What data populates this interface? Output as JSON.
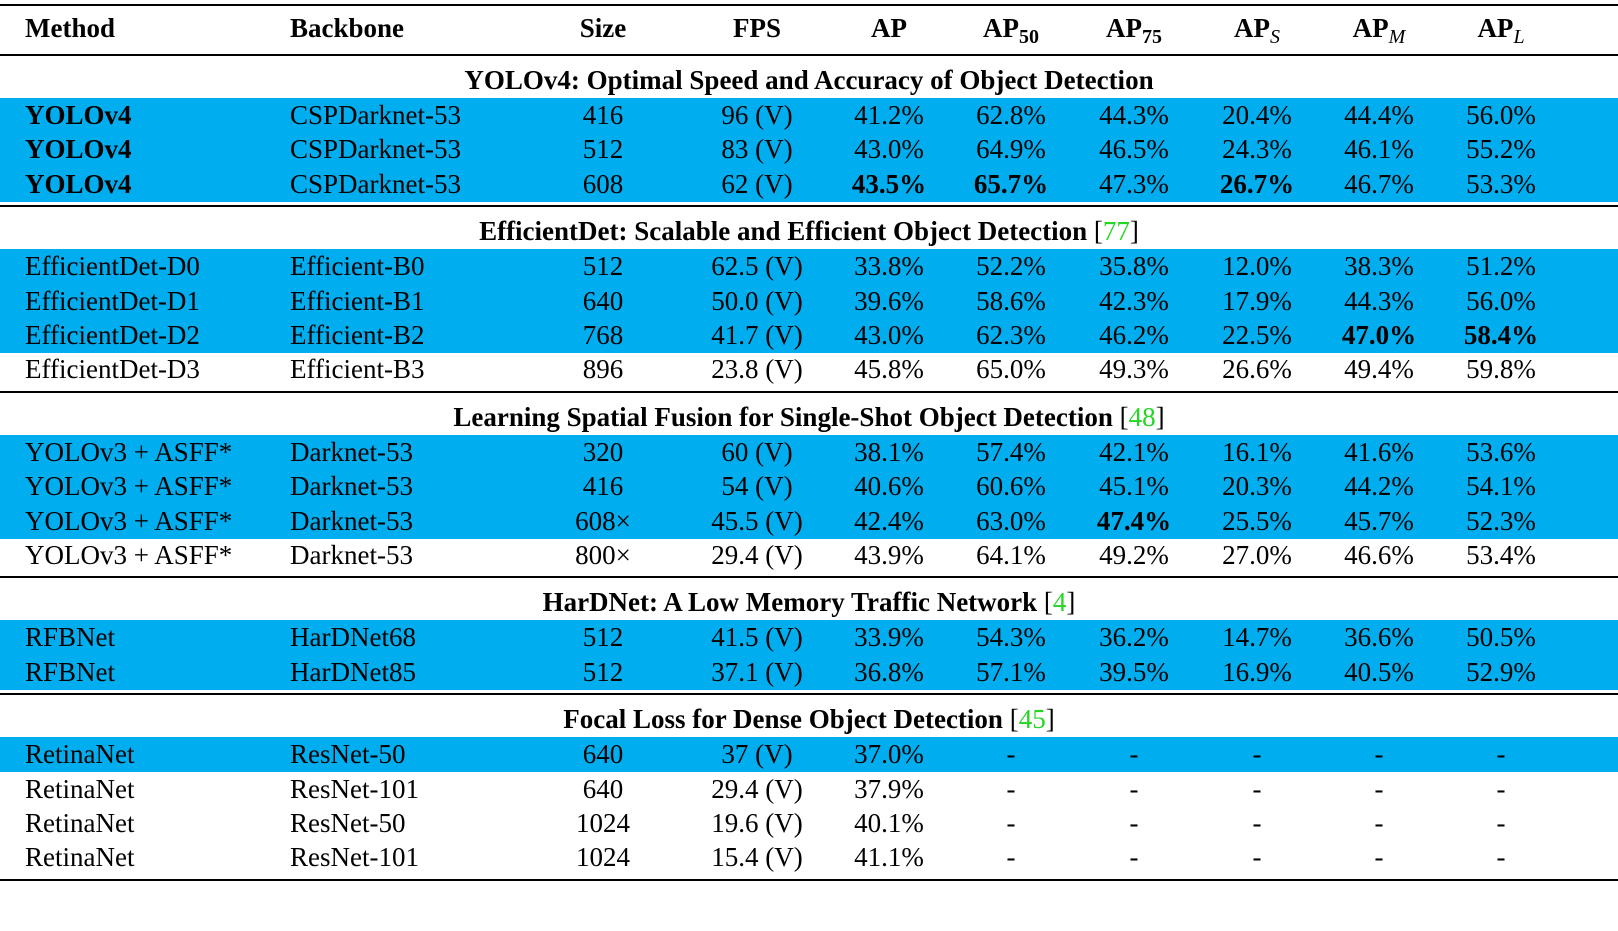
{
  "columns": [
    {
      "label": "Method",
      "sub": ""
    },
    {
      "label": "Backbone",
      "sub": ""
    },
    {
      "label": "Size",
      "sub": ""
    },
    {
      "label": "FPS",
      "sub": ""
    },
    {
      "label": "AP",
      "sub": ""
    },
    {
      "label": "AP",
      "sub": "50"
    },
    {
      "label": "AP",
      "sub": "75"
    },
    {
      "label": "AP",
      "sub": "S"
    },
    {
      "label": "AP",
      "sub": "M"
    },
    {
      "label": "AP",
      "sub": "L"
    }
  ],
  "colors": {
    "highlight": "#00aeef",
    "reference": "#22d622"
  },
  "sections": [
    {
      "title": "YOLOv4: Optimal Speed and Accuracy of Object Detection",
      "ref_open": "",
      "ref": "",
      "ref_close": "",
      "rows": [
        {
          "hl": true,
          "cells": [
            "YOLOv4",
            "CSPDarknet-53",
            "416",
            "96 (V)",
            "41.2%",
            "62.8%",
            "44.3%",
            "20.4%",
            "44.4%",
            "56.0%"
          ],
          "bold": [
            0
          ]
        },
        {
          "hl": true,
          "cells": [
            "YOLOv4",
            "CSPDarknet-53",
            "512",
            "83 (V)",
            "43.0%",
            "64.9%",
            "46.5%",
            "24.3%",
            "46.1%",
            "55.2%"
          ],
          "bold": [
            0
          ]
        },
        {
          "hl": true,
          "cells": [
            "YOLOv4",
            "CSPDarknet-53",
            "608",
            "62 (V)",
            "43.5%",
            "65.7%",
            "47.3%",
            "26.7%",
            "46.7%",
            "53.3%"
          ],
          "bold": [
            0,
            4,
            5,
            7
          ]
        }
      ]
    },
    {
      "title": "EfficientDet: Scalable and Efficient Object Detection",
      "ref_open": "[",
      "ref": "77",
      "ref_close": "]",
      "rows": [
        {
          "hl": true,
          "cells": [
            "EfficientDet-D0",
            "Efficient-B0",
            "512",
            "62.5 (V)",
            "33.8%",
            "52.2%",
            "35.8%",
            "12.0%",
            "38.3%",
            "51.2%"
          ],
          "bold": []
        },
        {
          "hl": true,
          "cells": [
            "EfficientDet-D1",
            "Efficient-B1",
            "640",
            "50.0 (V)",
            "39.6%",
            "58.6%",
            "42.3%",
            "17.9%",
            "44.3%",
            "56.0%"
          ],
          "bold": []
        },
        {
          "hl": true,
          "cells": [
            "EfficientDet-D2",
            "Efficient-B2",
            "768",
            "41.7 (V)",
            "43.0%",
            "62.3%",
            "46.2%",
            "22.5%",
            "47.0%",
            "58.4%"
          ],
          "bold": [
            8,
            9
          ]
        },
        {
          "hl": false,
          "cells": [
            "EfficientDet-D3",
            "Efficient-B3",
            "896",
            "23.8 (V)",
            "45.8%",
            "65.0%",
            "49.3%",
            "26.6%",
            "49.4%",
            "59.8%"
          ],
          "bold": []
        }
      ]
    },
    {
      "title": "Learning Spatial Fusion for Single-Shot Object Detection",
      "ref_open": "[",
      "ref": "48",
      "ref_close": "]",
      "rows": [
        {
          "hl": true,
          "cells": [
            "YOLOv3 + ASFF*",
            "Darknet-53",
            "320",
            "60 (V)",
            "38.1%",
            "57.4%",
            "42.1%",
            "16.1%",
            "41.6%",
            "53.6%"
          ],
          "bold": []
        },
        {
          "hl": true,
          "cells": [
            "YOLOv3 + ASFF*",
            "Darknet-53",
            "416",
            "54 (V)",
            "40.6%",
            "60.6%",
            "45.1%",
            "20.3%",
            "44.2%",
            "54.1%"
          ],
          "bold": []
        },
        {
          "hl": true,
          "cells": [
            "YOLOv3 + ASFF*",
            "Darknet-53",
            "608×",
            "45.5 (V)",
            "42.4%",
            "63.0%",
            "47.4%",
            "25.5%",
            "45.7%",
            "52.3%"
          ],
          "bold": [
            6
          ]
        },
        {
          "hl": false,
          "cells": [
            "YOLOv3 + ASFF*",
            "Darknet-53",
            "800×",
            "29.4 (V)",
            "43.9%",
            "64.1%",
            "49.2%",
            "27.0%",
            "46.6%",
            "53.4%"
          ],
          "bold": []
        }
      ]
    },
    {
      "title": "HarDNet: A Low Memory Traffic Network",
      "ref_open": "[",
      "ref": "4",
      "ref_close": "]",
      "rows": [
        {
          "hl": true,
          "cells": [
            "RFBNet",
            "HarDNet68",
            "512",
            "41.5 (V)",
            "33.9%",
            "54.3%",
            "36.2%",
            "14.7%",
            "36.6%",
            "50.5%"
          ],
          "bold": []
        },
        {
          "hl": true,
          "cells": [
            "RFBNet",
            "HarDNet85",
            "512",
            "37.1 (V)",
            "36.8%",
            "57.1%",
            "39.5%",
            "16.9%",
            "40.5%",
            "52.9%"
          ],
          "bold": []
        }
      ]
    },
    {
      "title": "Focal Loss for Dense Object Detection",
      "ref_open": "[",
      "ref": "45",
      "ref_close": "]",
      "rows": [
        {
          "hl": true,
          "cells": [
            "RetinaNet",
            "ResNet-50",
            "640",
            "37 (V)",
            "37.0%",
            "-",
            "-",
            "-",
            "-",
            "-"
          ],
          "bold": []
        },
        {
          "hl": false,
          "cells": [
            "RetinaNet",
            "ResNet-101",
            "640",
            "29.4 (V)",
            "37.9%",
            "-",
            "-",
            "-",
            "-",
            "-"
          ],
          "bold": []
        },
        {
          "hl": false,
          "cells": [
            "RetinaNet",
            "ResNet-50",
            "1024",
            "19.6 (V)",
            "40.1%",
            "-",
            "-",
            "-",
            "-",
            "-"
          ],
          "bold": []
        },
        {
          "hl": false,
          "cells": [
            "RetinaNet",
            "ResNet-101",
            "1024",
            "15.4 (V)",
            "41.1%",
            "-",
            "-",
            "-",
            "-",
            "-"
          ],
          "bold": []
        }
      ]
    }
  ],
  "chart_data": {
    "type": "table",
    "headers": [
      "Method",
      "Backbone",
      "Size",
      "FPS",
      "AP",
      "AP50",
      "AP75",
      "APS",
      "APM",
      "APL"
    ],
    "groups": [
      {
        "title": "YOLOv4: Optimal Speed and Accuracy of Object Detection",
        "rows": [
          [
            "YOLOv4",
            "CSPDarknet-53",
            "416",
            "96 (V)",
            "41.2%",
            "62.8%",
            "44.3%",
            "20.4%",
            "44.4%",
            "56.0%"
          ],
          [
            "YOLOv4",
            "CSPDarknet-53",
            "512",
            "83 (V)",
            "43.0%",
            "64.9%",
            "46.5%",
            "24.3%",
            "46.1%",
            "55.2%"
          ],
          [
            "YOLOv4",
            "CSPDarknet-53",
            "608",
            "62 (V)",
            "43.5%",
            "65.7%",
            "47.3%",
            "26.7%",
            "46.7%",
            "53.3%"
          ]
        ]
      },
      {
        "title": "EfficientDet: Scalable and Efficient Object Detection [77]",
        "rows": [
          [
            "EfficientDet-D0",
            "Efficient-B0",
            "512",
            "62.5 (V)",
            "33.8%",
            "52.2%",
            "35.8%",
            "12.0%",
            "38.3%",
            "51.2%"
          ],
          [
            "EfficientDet-D1",
            "Efficient-B1",
            "640",
            "50.0 (V)",
            "39.6%",
            "58.6%",
            "42.3%",
            "17.9%",
            "44.3%",
            "56.0%"
          ],
          [
            "EfficientDet-D2",
            "Efficient-B2",
            "768",
            "41.7 (V)",
            "43.0%",
            "62.3%",
            "46.2%",
            "22.5%",
            "47.0%",
            "58.4%"
          ],
          [
            "EfficientDet-D3",
            "Efficient-B3",
            "896",
            "23.8 (V)",
            "45.8%",
            "65.0%",
            "49.3%",
            "26.6%",
            "49.4%",
            "59.8%"
          ]
        ]
      },
      {
        "title": "Learning Spatial Fusion for Single-Shot Object Detection [48]",
        "rows": [
          [
            "YOLOv3 + ASFF*",
            "Darknet-53",
            "320",
            "60 (V)",
            "38.1%",
            "57.4%",
            "42.1%",
            "16.1%",
            "41.6%",
            "53.6%"
          ],
          [
            "YOLOv3 + ASFF*",
            "Darknet-53",
            "416",
            "54 (V)",
            "40.6%",
            "60.6%",
            "45.1%",
            "20.3%",
            "44.2%",
            "54.1%"
          ],
          [
            "YOLOv3 + ASFF*",
            "Darknet-53",
            "608×",
            "45.5 (V)",
            "42.4%",
            "63.0%",
            "47.4%",
            "25.5%",
            "45.7%",
            "52.3%"
          ],
          [
            "YOLOv3 + ASFF*",
            "Darknet-53",
            "800×",
            "29.4 (V)",
            "43.9%",
            "64.1%",
            "49.2%",
            "27.0%",
            "46.6%",
            "53.4%"
          ]
        ]
      },
      {
        "title": "HarDNet: A Low Memory Traffic Network [4]",
        "rows": [
          [
            "RFBNet",
            "HarDNet68",
            "512",
            "41.5 (V)",
            "33.9%",
            "54.3%",
            "36.2%",
            "14.7%",
            "36.6%",
            "50.5%"
          ],
          [
            "RFBNet",
            "HarDNet85",
            "512",
            "37.1 (V)",
            "36.8%",
            "57.1%",
            "39.5%",
            "16.9%",
            "40.5%",
            "52.9%"
          ]
        ]
      },
      {
        "title": "Focal Loss for Dense Object Detection [45]",
        "rows": [
          [
            "RetinaNet",
            "ResNet-50",
            "640",
            "37 (V)",
            "37.0%",
            "-",
            "-",
            "-",
            "-",
            "-"
          ],
          [
            "RetinaNet",
            "ResNet-101",
            "640",
            "29.4 (V)",
            "37.9%",
            "-",
            "-",
            "-",
            "-",
            "-"
          ],
          [
            "RetinaNet",
            "ResNet-50",
            "1024",
            "19.6 (V)",
            "40.1%",
            "-",
            "-",
            "-",
            "-",
            "-"
          ],
          [
            "RetinaNet",
            "ResNet-101",
            "1024",
            "15.4 (V)",
            "41.1%",
            "-",
            "-",
            "-",
            "-",
            "-"
          ]
        ]
      }
    ]
  }
}
